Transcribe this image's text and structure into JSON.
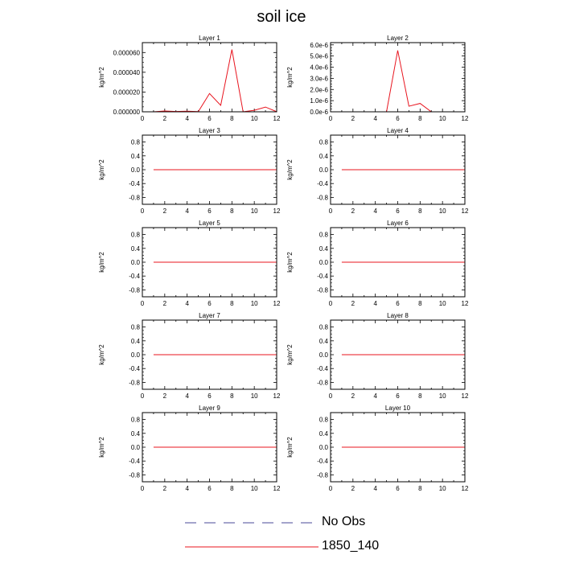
{
  "title": "soil ice",
  "chart_data": {
    "type": "line",
    "grid": false,
    "legend_placement": "bottom-center",
    "legend": [
      {
        "label": "No Obs",
        "color": "#4a4a9a",
        "dash": true
      },
      {
        "label": "1850_140",
        "color": "#e8141e",
        "dash": false
      }
    ],
    "x_ticks": [
      0,
      2,
      4,
      6,
      8,
      10,
      12
    ],
    "xlim": [
      0,
      12
    ],
    "panels": [
      {
        "title": "Layer 1",
        "ylabel": "kg/m^2",
        "ylim": [
          0,
          7e-05
        ],
        "y_ticks": [
          0,
          2e-05,
          4e-05,
          6e-05
        ],
        "y_tick_labels": [
          "0.000000",
          "0.000020",
          "0.000040",
          "0.000060"
        ],
        "x": [
          1,
          2,
          3,
          4,
          5,
          6,
          7,
          8,
          9,
          10,
          11,
          12
        ],
        "y": [
          0,
          8e-07,
          3e-07,
          6e-07,
          2e-07,
          1.85e-05,
          6.5e-06,
          6.3e-05,
          0,
          1.5e-06,
          4.8e-06,
          1e-07
        ]
      },
      {
        "title": "Layer 2",
        "ylabel": "kg/m^2",
        "ylim": [
          0,
          6.2e-06
        ],
        "y_ticks": [
          0,
          1e-06,
          2e-06,
          3e-06,
          4e-06,
          5e-06,
          6e-06
        ],
        "y_tick_labels": [
          "0.0e-6",
          "1.0e-6",
          "2.0e-6",
          "3.0e-6",
          "4.0e-6",
          "5.0e-6",
          "6.0e-6"
        ],
        "x": [
          1,
          2,
          3,
          4,
          5,
          6,
          7,
          8,
          9,
          10,
          11,
          12
        ],
        "y": [
          0,
          0,
          0,
          0,
          0,
          5.5e-06,
          5e-07,
          7.5e-07,
          0,
          0,
          0,
          0
        ]
      },
      {
        "title": "Layer 3",
        "ylabel": "kg/m^2",
        "ylim": [
          -1,
          1
        ],
        "y_ticks": [
          -0.8,
          -0.4,
          0,
          0.4,
          0.8
        ],
        "y_tick_labels": [
          "-0.8",
          "-0.4",
          "0.0",
          "0.4",
          "0.8"
        ],
        "x": [
          1,
          2,
          3,
          4,
          5,
          6,
          7,
          8,
          9,
          10,
          11,
          12
        ],
        "y": [
          0,
          0,
          0,
          0,
          0,
          0,
          0,
          0,
          0,
          0,
          0,
          0
        ]
      },
      {
        "title": "Layer 4",
        "ylabel": "kg/m^2",
        "ylim": [
          -1,
          1
        ],
        "y_ticks": [
          -0.8,
          -0.4,
          0,
          0.4,
          0.8
        ],
        "y_tick_labels": [
          "-0.8",
          "-0.4",
          "0.0",
          "0.4",
          "0.8"
        ],
        "x": [
          1,
          2,
          3,
          4,
          5,
          6,
          7,
          8,
          9,
          10,
          11,
          12
        ],
        "y": [
          0,
          0,
          0,
          0,
          0,
          0,
          0,
          0,
          0,
          0,
          0,
          0
        ]
      },
      {
        "title": "Layer 5",
        "ylabel": "kg/m^2",
        "ylim": [
          -1,
          1
        ],
        "y_ticks": [
          -0.8,
          -0.4,
          0,
          0.4,
          0.8
        ],
        "y_tick_labels": [
          "-0.8",
          "-0.4",
          "0.0",
          "0.4",
          "0.8"
        ],
        "x": [
          1,
          2,
          3,
          4,
          5,
          6,
          7,
          8,
          9,
          10,
          11,
          12
        ],
        "y": [
          0,
          0,
          0,
          0,
          0,
          0,
          0,
          0,
          0,
          0,
          0,
          0
        ]
      },
      {
        "title": "Layer 6",
        "ylabel": "kg/m^2",
        "ylim": [
          -1,
          1
        ],
        "y_ticks": [
          -0.8,
          -0.4,
          0,
          0.4,
          0.8
        ],
        "y_tick_labels": [
          "-0.8",
          "-0.4",
          "0.0",
          "0.4",
          "0.8"
        ],
        "x": [
          1,
          2,
          3,
          4,
          5,
          6,
          7,
          8,
          9,
          10,
          11,
          12
        ],
        "y": [
          0,
          0,
          0,
          0,
          0,
          0,
          0,
          0,
          0,
          0,
          0,
          0
        ]
      },
      {
        "title": "Layer 7",
        "ylabel": "kg/m^2",
        "ylim": [
          -1,
          1
        ],
        "y_ticks": [
          -0.8,
          -0.4,
          0,
          0.4,
          0.8
        ],
        "y_tick_labels": [
          "-0.8",
          "-0.4",
          "0.0",
          "0.4",
          "0.8"
        ],
        "x": [
          1,
          2,
          3,
          4,
          5,
          6,
          7,
          8,
          9,
          10,
          11,
          12
        ],
        "y": [
          0,
          0,
          0,
          0,
          0,
          0,
          0,
          0,
          0,
          0,
          0,
          0
        ]
      },
      {
        "title": "Layer 8",
        "ylabel": "kg/m^2",
        "ylim": [
          -1,
          1
        ],
        "y_ticks": [
          -0.8,
          -0.4,
          0,
          0.4,
          0.8
        ],
        "y_tick_labels": [
          "-0.8",
          "-0.4",
          "0.0",
          "0.4",
          "0.8"
        ],
        "x": [
          1,
          2,
          3,
          4,
          5,
          6,
          7,
          8,
          9,
          10,
          11,
          12
        ],
        "y": [
          0,
          0,
          0,
          0,
          0,
          0,
          0,
          0,
          0,
          0,
          0,
          0
        ]
      },
      {
        "title": "Layer 9",
        "ylabel": "kg/m^2",
        "ylim": [
          -1,
          1
        ],
        "y_ticks": [
          -0.8,
          -0.4,
          0,
          0.4,
          0.8
        ],
        "y_tick_labels": [
          "-0.8",
          "-0.4",
          "0.0",
          "0.4",
          "0.8"
        ],
        "x": [
          1,
          2,
          3,
          4,
          5,
          6,
          7,
          8,
          9,
          10,
          11,
          12
        ],
        "y": [
          0,
          0,
          0,
          0,
          0,
          0,
          0,
          0,
          0,
          0,
          0,
          0
        ]
      },
      {
        "title": "Layer 10",
        "ylabel": "kg/m^2",
        "ylim": [
          -1,
          1
        ],
        "y_ticks": [
          -0.8,
          -0.4,
          0,
          0.4,
          0.8
        ],
        "y_tick_labels": [
          "-0.8",
          "-0.4",
          "0.0",
          "0.4",
          "0.8"
        ],
        "x": [
          1,
          2,
          3,
          4,
          5,
          6,
          7,
          8,
          9,
          10,
          11,
          12
        ],
        "y": [
          0,
          0,
          0,
          0,
          0,
          0,
          0,
          0,
          0,
          0,
          0,
          0
        ]
      }
    ]
  }
}
